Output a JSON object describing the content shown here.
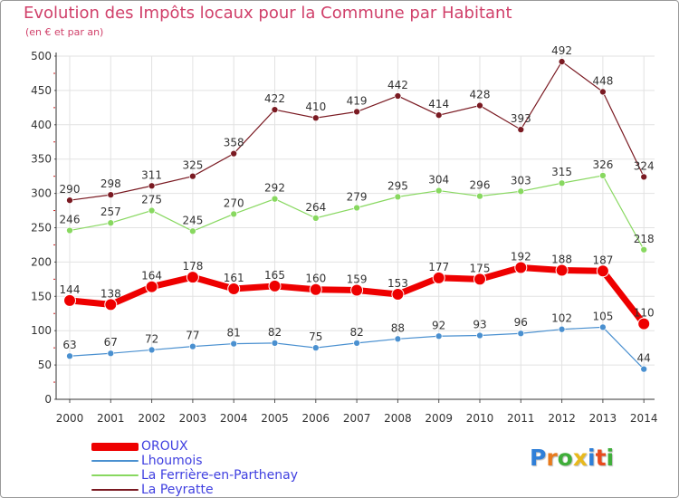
{
  "header": {
    "title": "Evolution des Impôts locaux pour la Commune par Habitant",
    "subtitle": "(en € et par an)"
  },
  "logo": {
    "text": "Proxiti",
    "colors": [
      "#2f7fd8",
      "#e87a1d",
      "#3fae3a",
      "#e8b91d",
      "#2f7fd8",
      "#e84a1d",
      "#3fae3a"
    ]
  },
  "chart_data": {
    "type": "line",
    "title": "Evolution des Impôts locaux pour la Commune par Habitant",
    "subtitle": "(en € et par an)",
    "xlabel": "",
    "ylabel": "",
    "ylim": [
      0,
      500
    ],
    "ytick_step": 50,
    "yticks": [
      "0",
      "50",
      "100",
      "150",
      "200",
      "250",
      "300",
      "350",
      "400",
      "450",
      "500"
    ],
    "grid": true,
    "legend_position": "bottom-left",
    "categories": [
      "2000",
      "2001",
      "2002",
      "2003",
      "2004",
      "2005",
      "2006",
      "2007",
      "2008",
      "2009",
      "2010",
      "2011",
      "2012",
      "2013",
      "2014"
    ],
    "series": [
      {
        "name": "La Peyratte",
        "color": "#7a1a22",
        "emphasis": false,
        "values": [
          290,
          298,
          311,
          325,
          358,
          422,
          410,
          419,
          442,
          414,
          428,
          393,
          492,
          448,
          324
        ]
      },
      {
        "name": "La Ferrière-en-Parthenay",
        "color": "#88d860",
        "emphasis": false,
        "values": [
          246,
          257,
          275,
          245,
          270,
          292,
          264,
          279,
          295,
          304,
          296,
          303,
          315,
          326,
          218
        ]
      },
      {
        "name": "Lhoumois",
        "color": "#4a90d0",
        "emphasis": false,
        "values": [
          63,
          67,
          72,
          77,
          81,
          82,
          75,
          82,
          88,
          92,
          93,
          96,
          102,
          105,
          44
        ]
      },
      {
        "name": "OROUX",
        "color": "#ee0000",
        "emphasis": true,
        "values": [
          144,
          138,
          164,
          178,
          161,
          165,
          160,
          159,
          153,
          177,
          175,
          192,
          188,
          187,
          110
        ]
      }
    ]
  }
}
